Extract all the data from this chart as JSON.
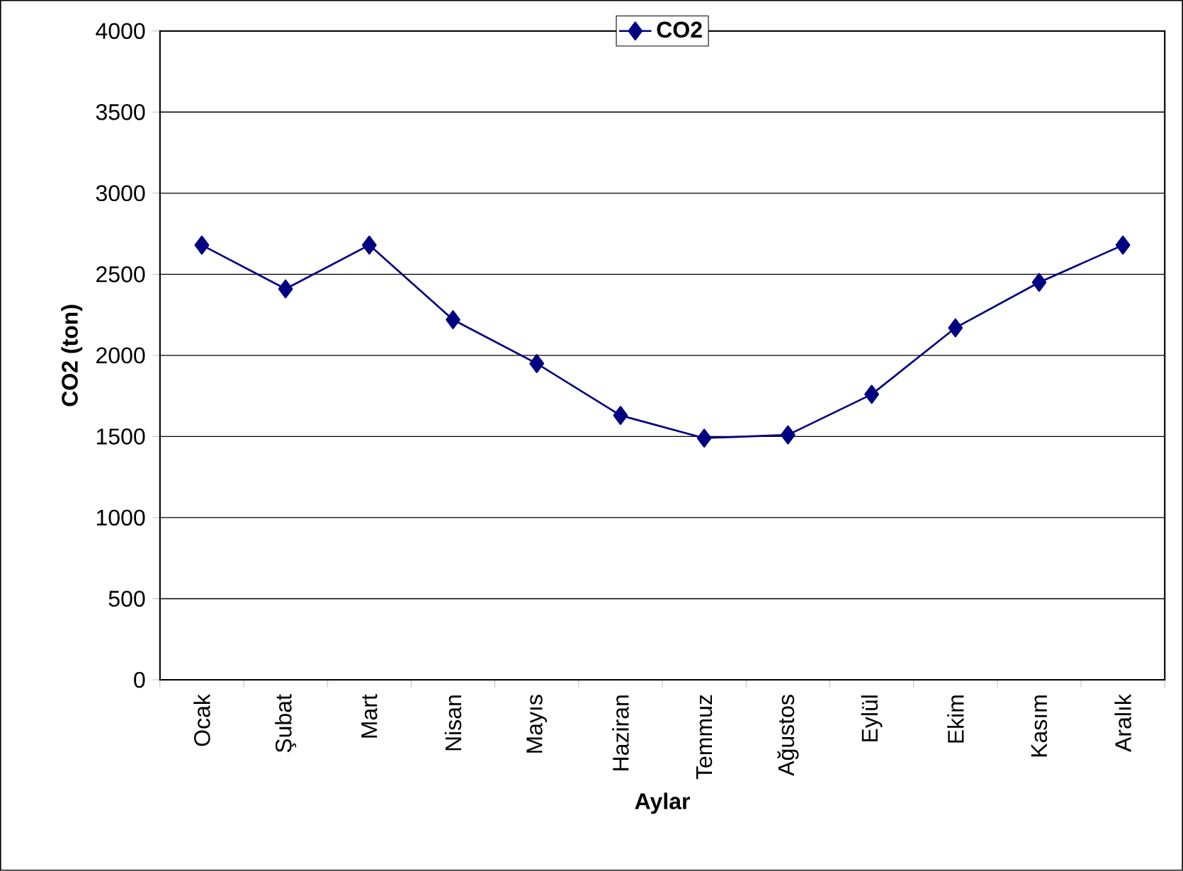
{
  "chart_data": {
    "type": "line",
    "xlabel": "Aylar",
    "ylabel": "CO2 (ton)",
    "categories": [
      "Ocak",
      "Şubat",
      "Mart",
      "Nisan",
      "Mayıs",
      "Haziran",
      "Temmuz",
      "Ağustos",
      "Eylül",
      "Ekim",
      "Kasım",
      "Aralık"
    ],
    "series": [
      {
        "name": "CO2",
        "color": "#000080",
        "values": [
          2680,
          2410,
          2680,
          2220,
          1950,
          1630,
          1490,
          1510,
          1760,
          2170,
          2450,
          2680
        ]
      }
    ],
    "ylim": [
      0,
      4000
    ],
    "yticks": [
      0,
      500,
      1000,
      1500,
      2000,
      2500,
      3000,
      3500,
      4000
    ],
    "grid": "y",
    "legend": "top",
    "marker": "diamond",
    "line_style": "solid"
  }
}
